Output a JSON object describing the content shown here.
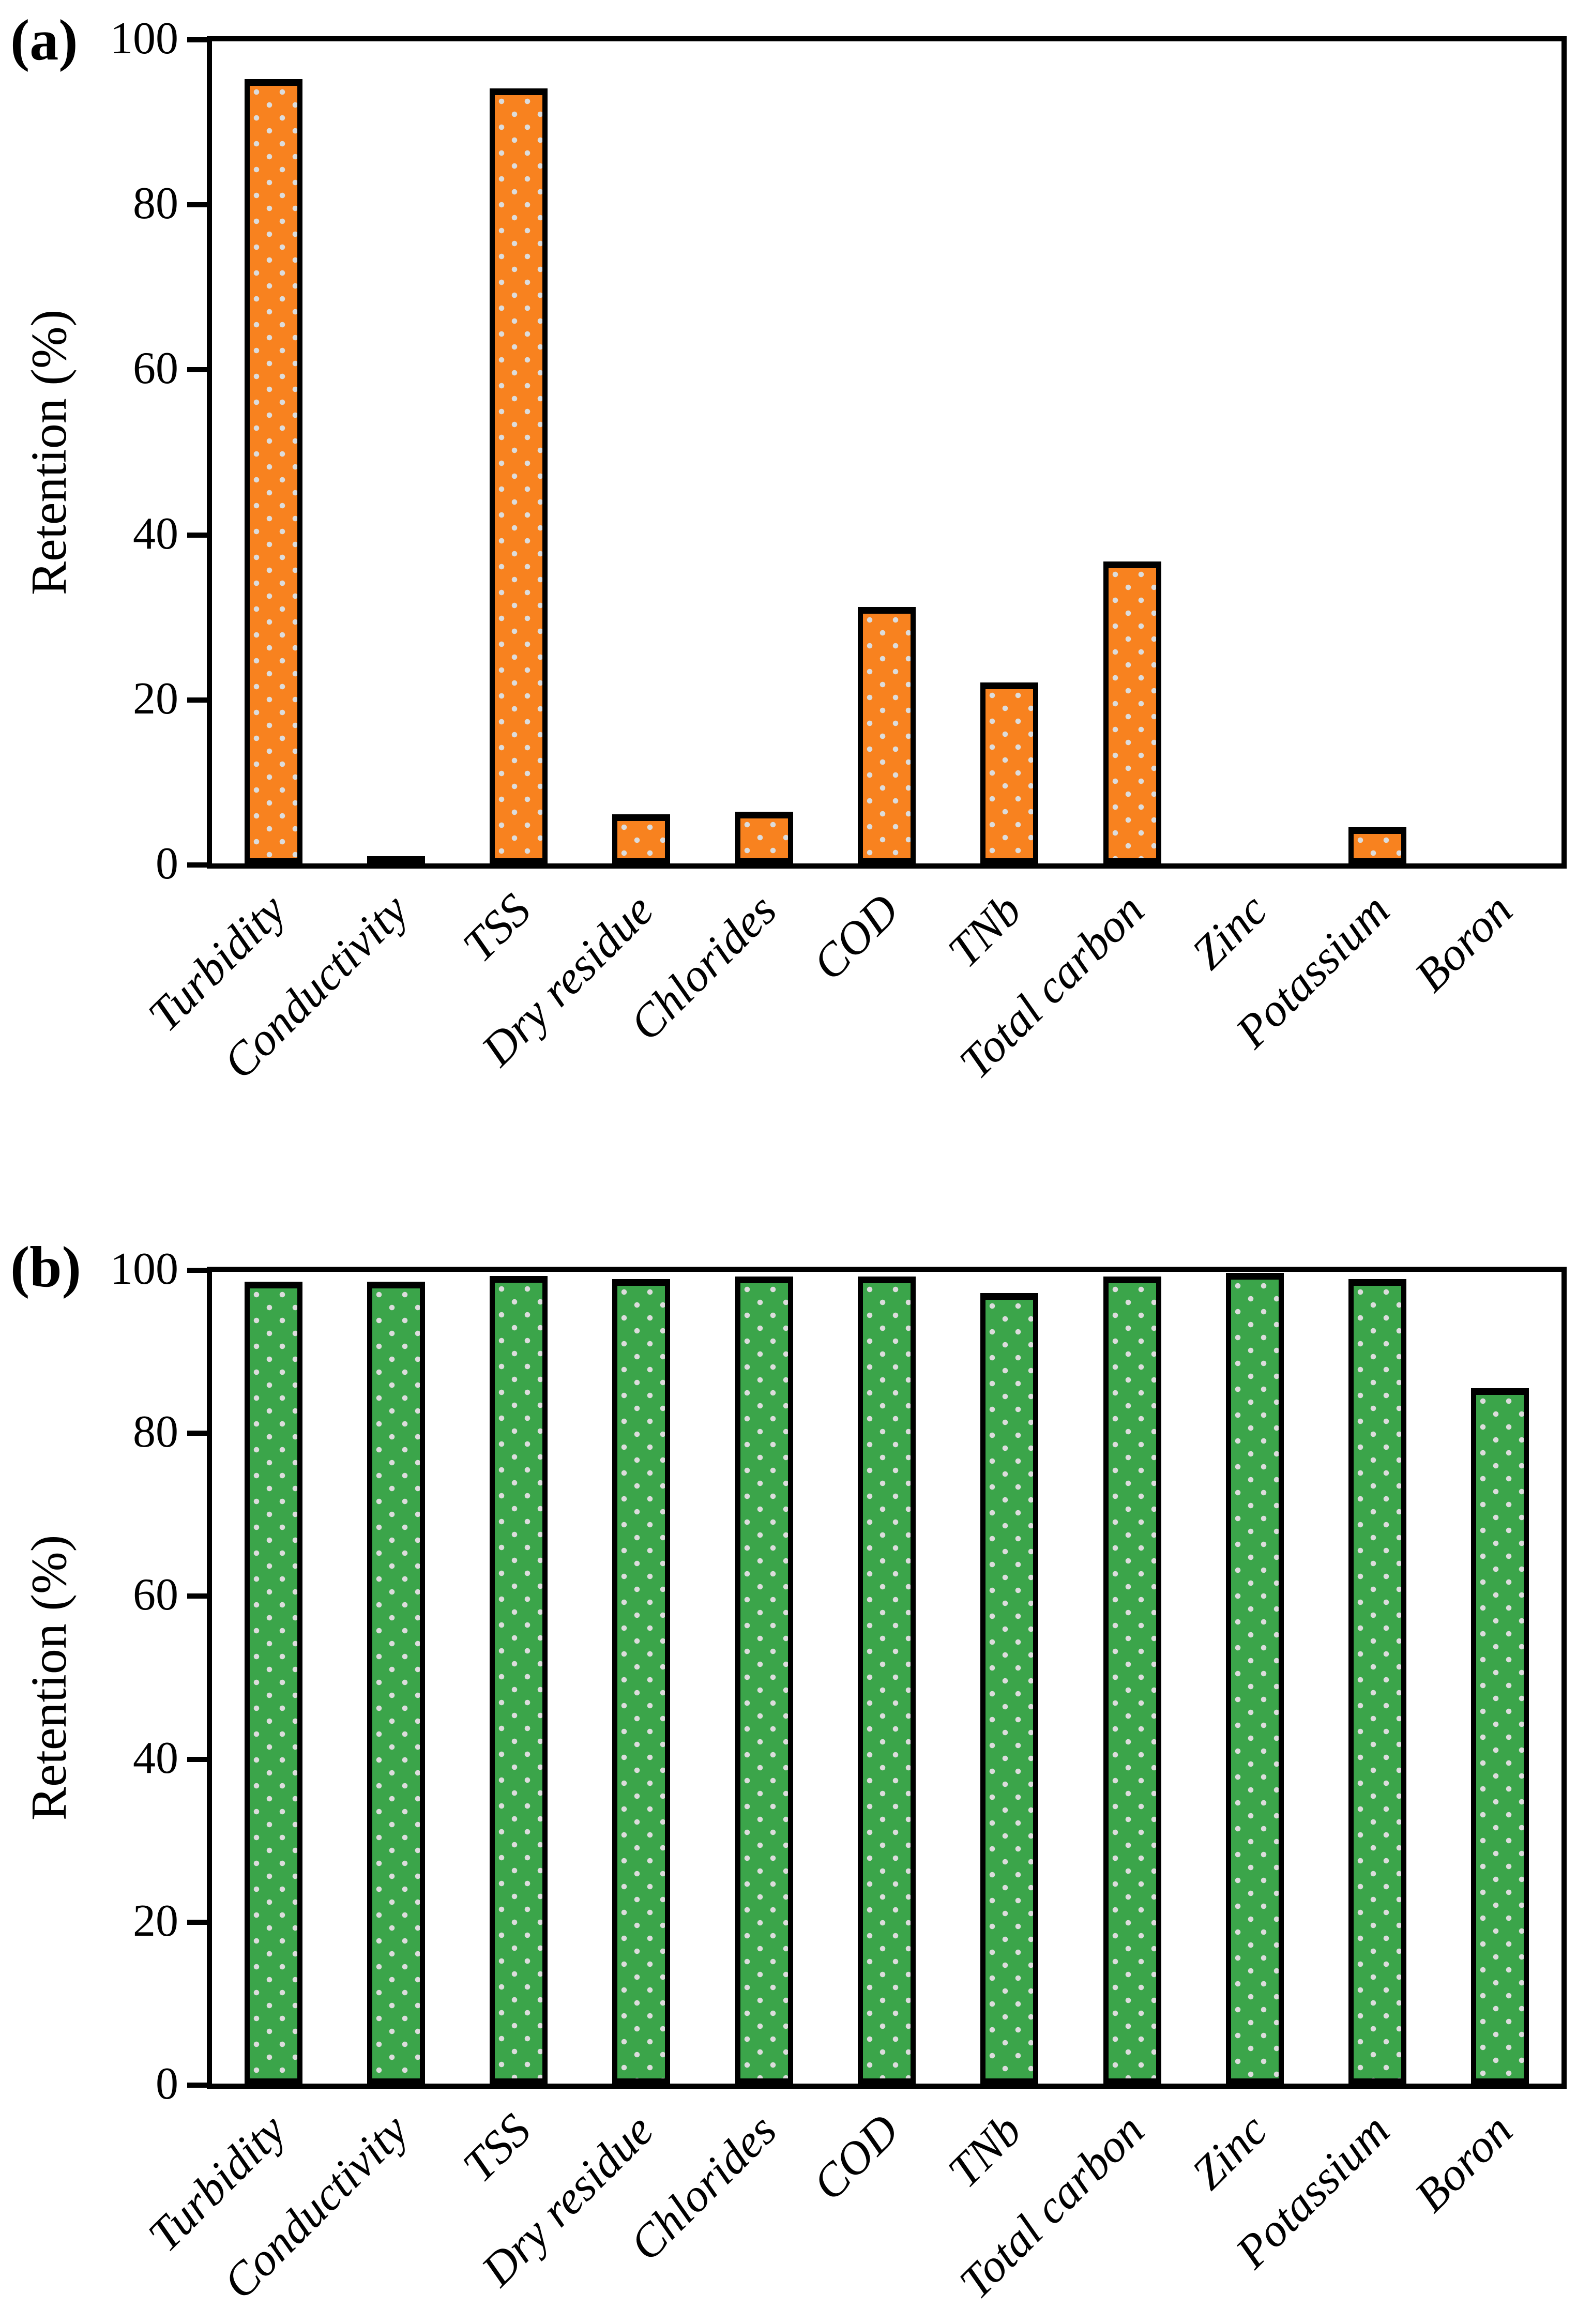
{
  "figure": {
    "background": "#FFFFFF",
    "axis_color": "#000000",
    "panels": [
      {
        "label": "(a)",
        "ylabel": "Retention (%)"
      },
      {
        "label": "(b)",
        "ylabel": "Retention (%)"
      }
    ]
  },
  "chart_data": [
    {
      "type": "bar",
      "panel_label": "(a)",
      "title": "",
      "ylabel": "Retention (%)",
      "xlabel": "",
      "ylim": [
        0,
        100
      ],
      "yticks": [
        0,
        20,
        40,
        60,
        80,
        100
      ],
      "grid": false,
      "legend": false,
      "categories": [
        "Turbidity",
        "Conductivity",
        "TSS",
        "Dry residue",
        "Chlorides",
        "COD",
        "TNb",
        "Total carbon",
        "Zinc",
        "Potassium",
        "Boron"
      ],
      "values": [
        95.4,
        0.7,
        94.3,
        6.0,
        6.3,
        31.2,
        22.0,
        36.7,
        0,
        4.4,
        0
      ],
      "bar_fill": "#F8821F",
      "bar_border": "#000000",
      "bar_pattern": "light-gray-dots",
      "dot_color": "#DCDCDC"
    },
    {
      "type": "bar",
      "panel_label": "(b)",
      "title": "",
      "ylabel": "Retention (%)",
      "xlabel": "",
      "ylim": [
        0,
        100
      ],
      "yticks": [
        0,
        20,
        40,
        60,
        80,
        100
      ],
      "grid": false,
      "legend": false,
      "categories": [
        "Turbidity",
        "Conductivity",
        "TSS",
        "Dry residue",
        "Chlorides",
        "COD",
        "TNb",
        "Total carbon",
        "Zinc",
        "Potassium",
        "Boron"
      ],
      "values": [
        98.8,
        98.8,
        99.5,
        99.1,
        99.4,
        99.4,
        97.4,
        99.4,
        99.9,
        99.1,
        85.7
      ],
      "bar_fill": "#3BA54A",
      "bar_border": "#000000",
      "bar_pattern": "light-gray-dots",
      "dot_color": "#DCDCDC"
    }
  ]
}
